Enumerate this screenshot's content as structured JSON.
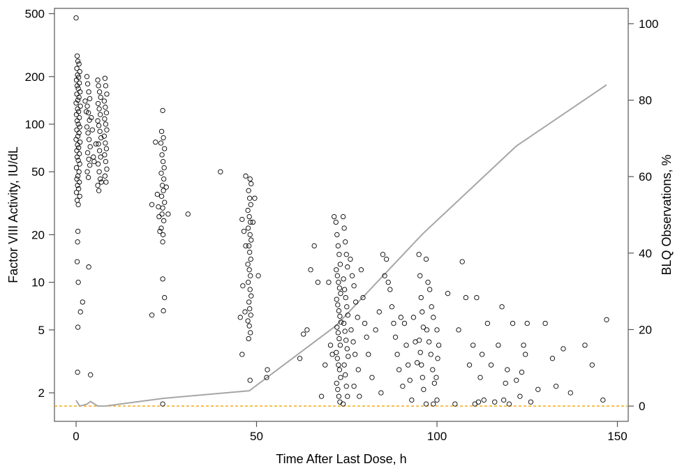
{
  "chart_data": {
    "type": "scatter",
    "xlabel": "Time After Last Dose, h",
    "ylabel": "Factor VIII Activity, IU/dL",
    "y2label": "BLQ Observations, %",
    "y_scale": "log",
    "xlim": [
      -6,
      153
    ],
    "ylim": [
      1.32,
      540
    ],
    "y2lim": [
      -4,
      104
    ],
    "x_ticks": [
      0,
      50,
      100,
      150
    ],
    "y_ticks": [
      2,
      5,
      10,
      20,
      50,
      100,
      200,
      500
    ],
    "y2_ticks": [
      0,
      20,
      40,
      60,
      80,
      100
    ],
    "grid": false,
    "legend": "none",
    "colors": {
      "points": "#000000",
      "blq_line": "#a6a6a6",
      "reference_line": "#f4a300"
    },
    "reference_line_y2": 0,
    "blq_line": {
      "x": [
        0,
        1,
        3,
        4,
        6,
        8,
        24,
        48,
        72,
        96,
        122,
        147
      ],
      "y2": [
        1.5,
        0,
        0.5,
        1.2,
        0,
        0,
        2,
        4,
        21,
        45,
        68,
        84
      ]
    },
    "points": [
      [
        0,
        470
      ],
      [
        0.3,
        270
      ],
      [
        0.5,
        250
      ],
      [
        0.8,
        240
      ],
      [
        0.2,
        225
      ],
      [
        1.0,
        215
      ],
      [
        0.4,
        205
      ],
      [
        0.7,
        198
      ],
      [
        0.1,
        190
      ],
      [
        0.9,
        182
      ],
      [
        0.3,
        175
      ],
      [
        0.6,
        168
      ],
      [
        1.1,
        160
      ],
      [
        0.2,
        155
      ],
      [
        0.8,
        148
      ],
      [
        0.5,
        142
      ],
      [
        0,
        136
      ],
      [
        1.2,
        130
      ],
      [
        0.4,
        125
      ],
      [
        0.7,
        120
      ],
      [
        0.1,
        115
      ],
      [
        0.9,
        110
      ],
      [
        0.3,
        105
      ],
      [
        0.6,
        100
      ],
      [
        1.0,
        96
      ],
      [
        0.2,
        92
      ],
      [
        0.8,
        88
      ],
      [
        0.5,
        84
      ],
      [
        0,
        80
      ],
      [
        1.1,
        77
      ],
      [
        0.4,
        74
      ],
      [
        0.7,
        71
      ],
      [
        0.2,
        68
      ],
      [
        0.9,
        65
      ],
      [
        0.3,
        62
      ],
      [
        0.6,
        59
      ],
      [
        1.0,
        56
      ],
      [
        0.1,
        53
      ],
      [
        0.8,
        50
      ],
      [
        0.5,
        47
      ],
      [
        0.2,
        45
      ],
      [
        0.9,
        43
      ],
      [
        0.4,
        41
      ],
      [
        0.7,
        39
      ],
      [
        0.1,
        37
      ],
      [
        1.0,
        35
      ],
      [
        0.3,
        33
      ],
      [
        0.6,
        31
      ],
      [
        0.5,
        21
      ],
      [
        0.4,
        18
      ],
      [
        0.3,
        13.5
      ],
      [
        0.6,
        10
      ],
      [
        1.2,
        6.5
      ],
      [
        0.5,
        5.2
      ],
      [
        0.4,
        2.7
      ],
      [
        1.8,
        7.5
      ],
      [
        3.5,
        12.5
      ],
      [
        4.0,
        2.6
      ],
      [
        3,
        200
      ],
      [
        3.2,
        180
      ],
      [
        3.5,
        160
      ],
      [
        3.8,
        145
      ],
      [
        3.1,
        130
      ],
      [
        3.4,
        118
      ],
      [
        3.7,
        106
      ],
      [
        3.0,
        96
      ],
      [
        3.3,
        88
      ],
      [
        3.6,
        80
      ],
      [
        3.9,
        72
      ],
      [
        3.2,
        66
      ],
      [
        3.5,
        60
      ],
      [
        3.8,
        55
      ],
      [
        3.1,
        50
      ],
      [
        3.4,
        46
      ],
      [
        2.5,
        140
      ],
      [
        2.8,
        120
      ],
      [
        4.2,
        110
      ],
      [
        4.5,
        92
      ],
      [
        5.5,
        75
      ],
      [
        4.8,
        62
      ],
      [
        5.0,
        58
      ],
      [
        6.0,
        190
      ],
      [
        6.2,
        175
      ],
      [
        6.5,
        160
      ],
      [
        6.8,
        148
      ],
      [
        6.1,
        135
      ],
      [
        6.4,
        125
      ],
      [
        6.7,
        115
      ],
      [
        6.0,
        105
      ],
      [
        6.3,
        98
      ],
      [
        6.6,
        90
      ],
      [
        6.9,
        82
      ],
      [
        6.2,
        75
      ],
      [
        6.5,
        68
      ],
      [
        6.8,
        62
      ],
      [
        6.1,
        56
      ],
      [
        6.4,
        50
      ],
      [
        6.7,
        45
      ],
      [
        6.0,
        41
      ],
      [
        6.3,
        38
      ],
      [
        7.0,
        43
      ],
      [
        8,
        195
      ],
      [
        8.2,
        175
      ],
      [
        8.5,
        155
      ],
      [
        7.8,
        140
      ],
      [
        8.1,
        128
      ],
      [
        8.4,
        118
      ],
      [
        7.9,
        108
      ],
      [
        8.2,
        100
      ],
      [
        8.5,
        92
      ],
      [
        7.8,
        84
      ],
      [
        8.1,
        76
      ],
      [
        8.4,
        70
      ],
      [
        7.9,
        64
      ],
      [
        8.2,
        58
      ],
      [
        8.5,
        52
      ],
      [
        8.0,
        47
      ],
      [
        8.3,
        43
      ],
      [
        24,
        122
      ],
      [
        23.7,
        90
      ],
      [
        24.2,
        82
      ],
      [
        23.5,
        76
      ],
      [
        24.5,
        70
      ],
      [
        23.8,
        64
      ],
      [
        24.1,
        58
      ],
      [
        24.4,
        53
      ],
      [
        23.6,
        49
      ],
      [
        24.3,
        45
      ],
      [
        23.9,
        41
      ],
      [
        24.2,
        38
      ],
      [
        23.7,
        35
      ],
      [
        24.5,
        32
      ],
      [
        24.0,
        29.5
      ],
      [
        23.8,
        27
      ],
      [
        24.3,
        24.5
      ],
      [
        23.6,
        22
      ],
      [
        24.1,
        20
      ],
      [
        24.0,
        18
      ],
      [
        22.5,
        36
      ],
      [
        22.8,
        30
      ],
      [
        23.0,
        26
      ],
      [
        25.0,
        40
      ],
      [
        25.5,
        27
      ],
      [
        21.0,
        31
      ],
      [
        23.2,
        21
      ],
      [
        24.0,
        10.5
      ],
      [
        24.5,
        8
      ],
      [
        24.2,
        6.6
      ],
      [
        21.0,
        6.2
      ],
      [
        22.0,
        77
      ],
      [
        24.0,
        1.7
      ],
      [
        31,
        27
      ],
      [
        40,
        50
      ],
      [
        47,
        47
      ],
      [
        48.2,
        45
      ],
      [
        48.5,
        42
      ],
      [
        47.8,
        38
      ],
      [
        48.1,
        34
      ],
      [
        48.4,
        31
      ],
      [
        47.6,
        28.5
      ],
      [
        48.0,
        26
      ],
      [
        48.3,
        24
      ],
      [
        47.7,
        22
      ],
      [
        48.2,
        20
      ],
      [
        48.5,
        18.5
      ],
      [
        47.9,
        17
      ],
      [
        48.1,
        15.5
      ],
      [
        48.4,
        14
      ],
      [
        47.6,
        13
      ],
      [
        48.0,
        12
      ],
      [
        48.3,
        11
      ],
      [
        47.7,
        10
      ],
      [
        48.2,
        9
      ],
      [
        48.5,
        8.2
      ],
      [
        47.9,
        7.5
      ],
      [
        48.1,
        6.8
      ],
      [
        48.4,
        6.2
      ],
      [
        47.6,
        5.7
      ],
      [
        48.0,
        5.3
      ],
      [
        48.3,
        4.8
      ],
      [
        47.8,
        4.4
      ],
      [
        48.2,
        2.4
      ],
      [
        46.0,
        25
      ],
      [
        46.5,
        21
      ],
      [
        47.0,
        17
      ],
      [
        46.2,
        9.5
      ],
      [
        46.8,
        6.5
      ],
      [
        45.5,
        6.0
      ],
      [
        49.5,
        34
      ],
      [
        49.0,
        24
      ],
      [
        50.5,
        11
      ],
      [
        46.0,
        3.5
      ],
      [
        53,
        2.8
      ],
      [
        52.8,
        2.5
      ],
      [
        62,
        3.3
      ],
      [
        63,
        4.7
      ],
      [
        64,
        5.0
      ],
      [
        65,
        12
      ],
      [
        66,
        17
      ],
      [
        67,
        10
      ],
      [
        68,
        1.9
      ],
      [
        69,
        3
      ],
      [
        70,
        10
      ],
      [
        70.5,
        4
      ],
      [
        71,
        3.5
      ],
      [
        71.5,
        26
      ],
      [
        72,
        24
      ],
      [
        72.3,
        20
      ],
      [
        72.6,
        17
      ],
      [
        72.9,
        15
      ],
      [
        73.2,
        13
      ],
      [
        72.1,
        12
      ],
      [
        72.4,
        11
      ],
      [
        72.7,
        10
      ],
      [
        73.0,
        9.2
      ],
      [
        73.3,
        8.5
      ],
      [
        72.2,
        7.8
      ],
      [
        72.5,
        7.2
      ],
      [
        72.8,
        6.6
      ],
      [
        73.1,
        6.1
      ],
      [
        73.4,
        5.6
      ],
      [
        72.3,
        5.2
      ],
      [
        72.6,
        4.8
      ],
      [
        72.9,
        4.4
      ],
      [
        73.2,
        4.0
      ],
      [
        72.1,
        3.6
      ],
      [
        72.4,
        3.3
      ],
      [
        72.7,
        3.0
      ],
      [
        73.0,
        2.8
      ],
      [
        73.3,
        2.5
      ],
      [
        72.2,
        2.3
      ],
      [
        72.5,
        2.1
      ],
      [
        72.8,
        1.9
      ],
      [
        73.1,
        1.75
      ],
      [
        74,
        26
      ],
      [
        74.3,
        22
      ],
      [
        74.6,
        18
      ],
      [
        74.9,
        15
      ],
      [
        75.2,
        12.5
      ],
      [
        74.1,
        10.5
      ],
      [
        74.4,
        9
      ],
      [
        74.7,
        8
      ],
      [
        75.0,
        7
      ],
      [
        75.3,
        6.2
      ],
      [
        74.2,
        5.5
      ],
      [
        74.5,
        4.9
      ],
      [
        74.8,
        4.3
      ],
      [
        75.1,
        3.8
      ],
      [
        75.4,
        3.4
      ],
      [
        74.3,
        3
      ],
      [
        74.6,
        2.6
      ],
      [
        74.9,
        2.2
      ],
      [
        75.2,
        1.9
      ],
      [
        74.0,
        1.7
      ],
      [
        76,
        14
      ],
      [
        76.5,
        11
      ],
      [
        77,
        9.5
      ],
      [
        77.5,
        7.5
      ],
      [
        78,
        6
      ],
      [
        76.2,
        5
      ],
      [
        76.8,
        4.2
      ],
      [
        77.3,
        3.5
      ],
      [
        78.2,
        2.8
      ],
      [
        77.0,
        2.2
      ],
      [
        78.5,
        1.9
      ],
      [
        79.0,
        12
      ],
      [
        79.5,
        8
      ],
      [
        80,
        5.5
      ],
      [
        80.5,
        4.5
      ],
      [
        81,
        3.5
      ],
      [
        82,
        2.5
      ],
      [
        83,
        5
      ],
      [
        84,
        6.5
      ],
      [
        84.5,
        2.0
      ],
      [
        85,
        15
      ],
      [
        85.5,
        11
      ],
      [
        86,
        14
      ],
      [
        86.5,
        10
      ],
      [
        87,
        9
      ],
      [
        87.5,
        7
      ],
      [
        88,
        5.5
      ],
      [
        88.5,
        4.5
      ],
      [
        89,
        3.5
      ],
      [
        89.5,
        2.8
      ],
      [
        90,
        6
      ],
      [
        90.5,
        2.2
      ],
      [
        91,
        5.5
      ],
      [
        91.5,
        4
      ],
      [
        92,
        3
      ],
      [
        92.5,
        2.4
      ],
      [
        93,
        1.8
      ],
      [
        93.5,
        6
      ],
      [
        94,
        4.2
      ],
      [
        94.5,
        3.1
      ],
      [
        95,
        15
      ],
      [
        95.3,
        11
      ],
      [
        95.6,
        8
      ],
      [
        95.9,
        6.5
      ],
      [
        96.2,
        5.2
      ],
      [
        95.1,
        4.3
      ],
      [
        95.4,
        3.6
      ],
      [
        95.7,
        3
      ],
      [
        96.0,
        2.5
      ],
      [
        96.3,
        2.1
      ],
      [
        97,
        14
      ],
      [
        97.5,
        10
      ],
      [
        98,
        9
      ],
      [
        98.5,
        7
      ],
      [
        99,
        6
      ],
      [
        97.2,
        5
      ],
      [
        97.8,
        4.2
      ],
      [
        98.3,
        3.5
      ],
      [
        98.8,
        2.8
      ],
      [
        99.3,
        2.3
      ],
      [
        100,
        5
      ],
      [
        100.5,
        4
      ],
      [
        100.2,
        3.3
      ],
      [
        99.8,
        2.5
      ],
      [
        100.0,
        1.8
      ],
      [
        99.0,
        1.7
      ],
      [
        97.0,
        1.7
      ],
      [
        103,
        8.5
      ],
      [
        105,
        1.7
      ],
      [
        106,
        5
      ],
      [
        107,
        13.5
      ],
      [
        108,
        8
      ],
      [
        109,
        3
      ],
      [
        110,
        4
      ],
      [
        110.5,
        1.7
      ],
      [
        111,
        8
      ],
      [
        111.5,
        1.75
      ],
      [
        112,
        2.5
      ],
      [
        112.5,
        3.5
      ],
      [
        113,
        1.8
      ],
      [
        114,
        5.5
      ],
      [
        115,
        3
      ],
      [
        116,
        1.75
      ],
      [
        117,
        4
      ],
      [
        118,
        7
      ],
      [
        118.5,
        1.8
      ],
      [
        119,
        2.3
      ],
      [
        119.5,
        2.8
      ],
      [
        120,
        1.7
      ],
      [
        121,
        5.5
      ],
      [
        122,
        2.4
      ],
      [
        123,
        1.9
      ],
      [
        123.5,
        2.7
      ],
      [
        124,
        4
      ],
      [
        124.5,
        3.5
      ],
      [
        125,
        5.5
      ],
      [
        126,
        1.75
      ],
      [
        128,
        2.1
      ],
      [
        130,
        5.5
      ],
      [
        132,
        3.3
      ],
      [
        133,
        2.2
      ],
      [
        135,
        3.8
      ],
      [
        137,
        2.0
      ],
      [
        141,
        4.0
      ],
      [
        143,
        3.0
      ],
      [
        147,
        5.8
      ],
      [
        146,
        1.8
      ]
    ]
  }
}
